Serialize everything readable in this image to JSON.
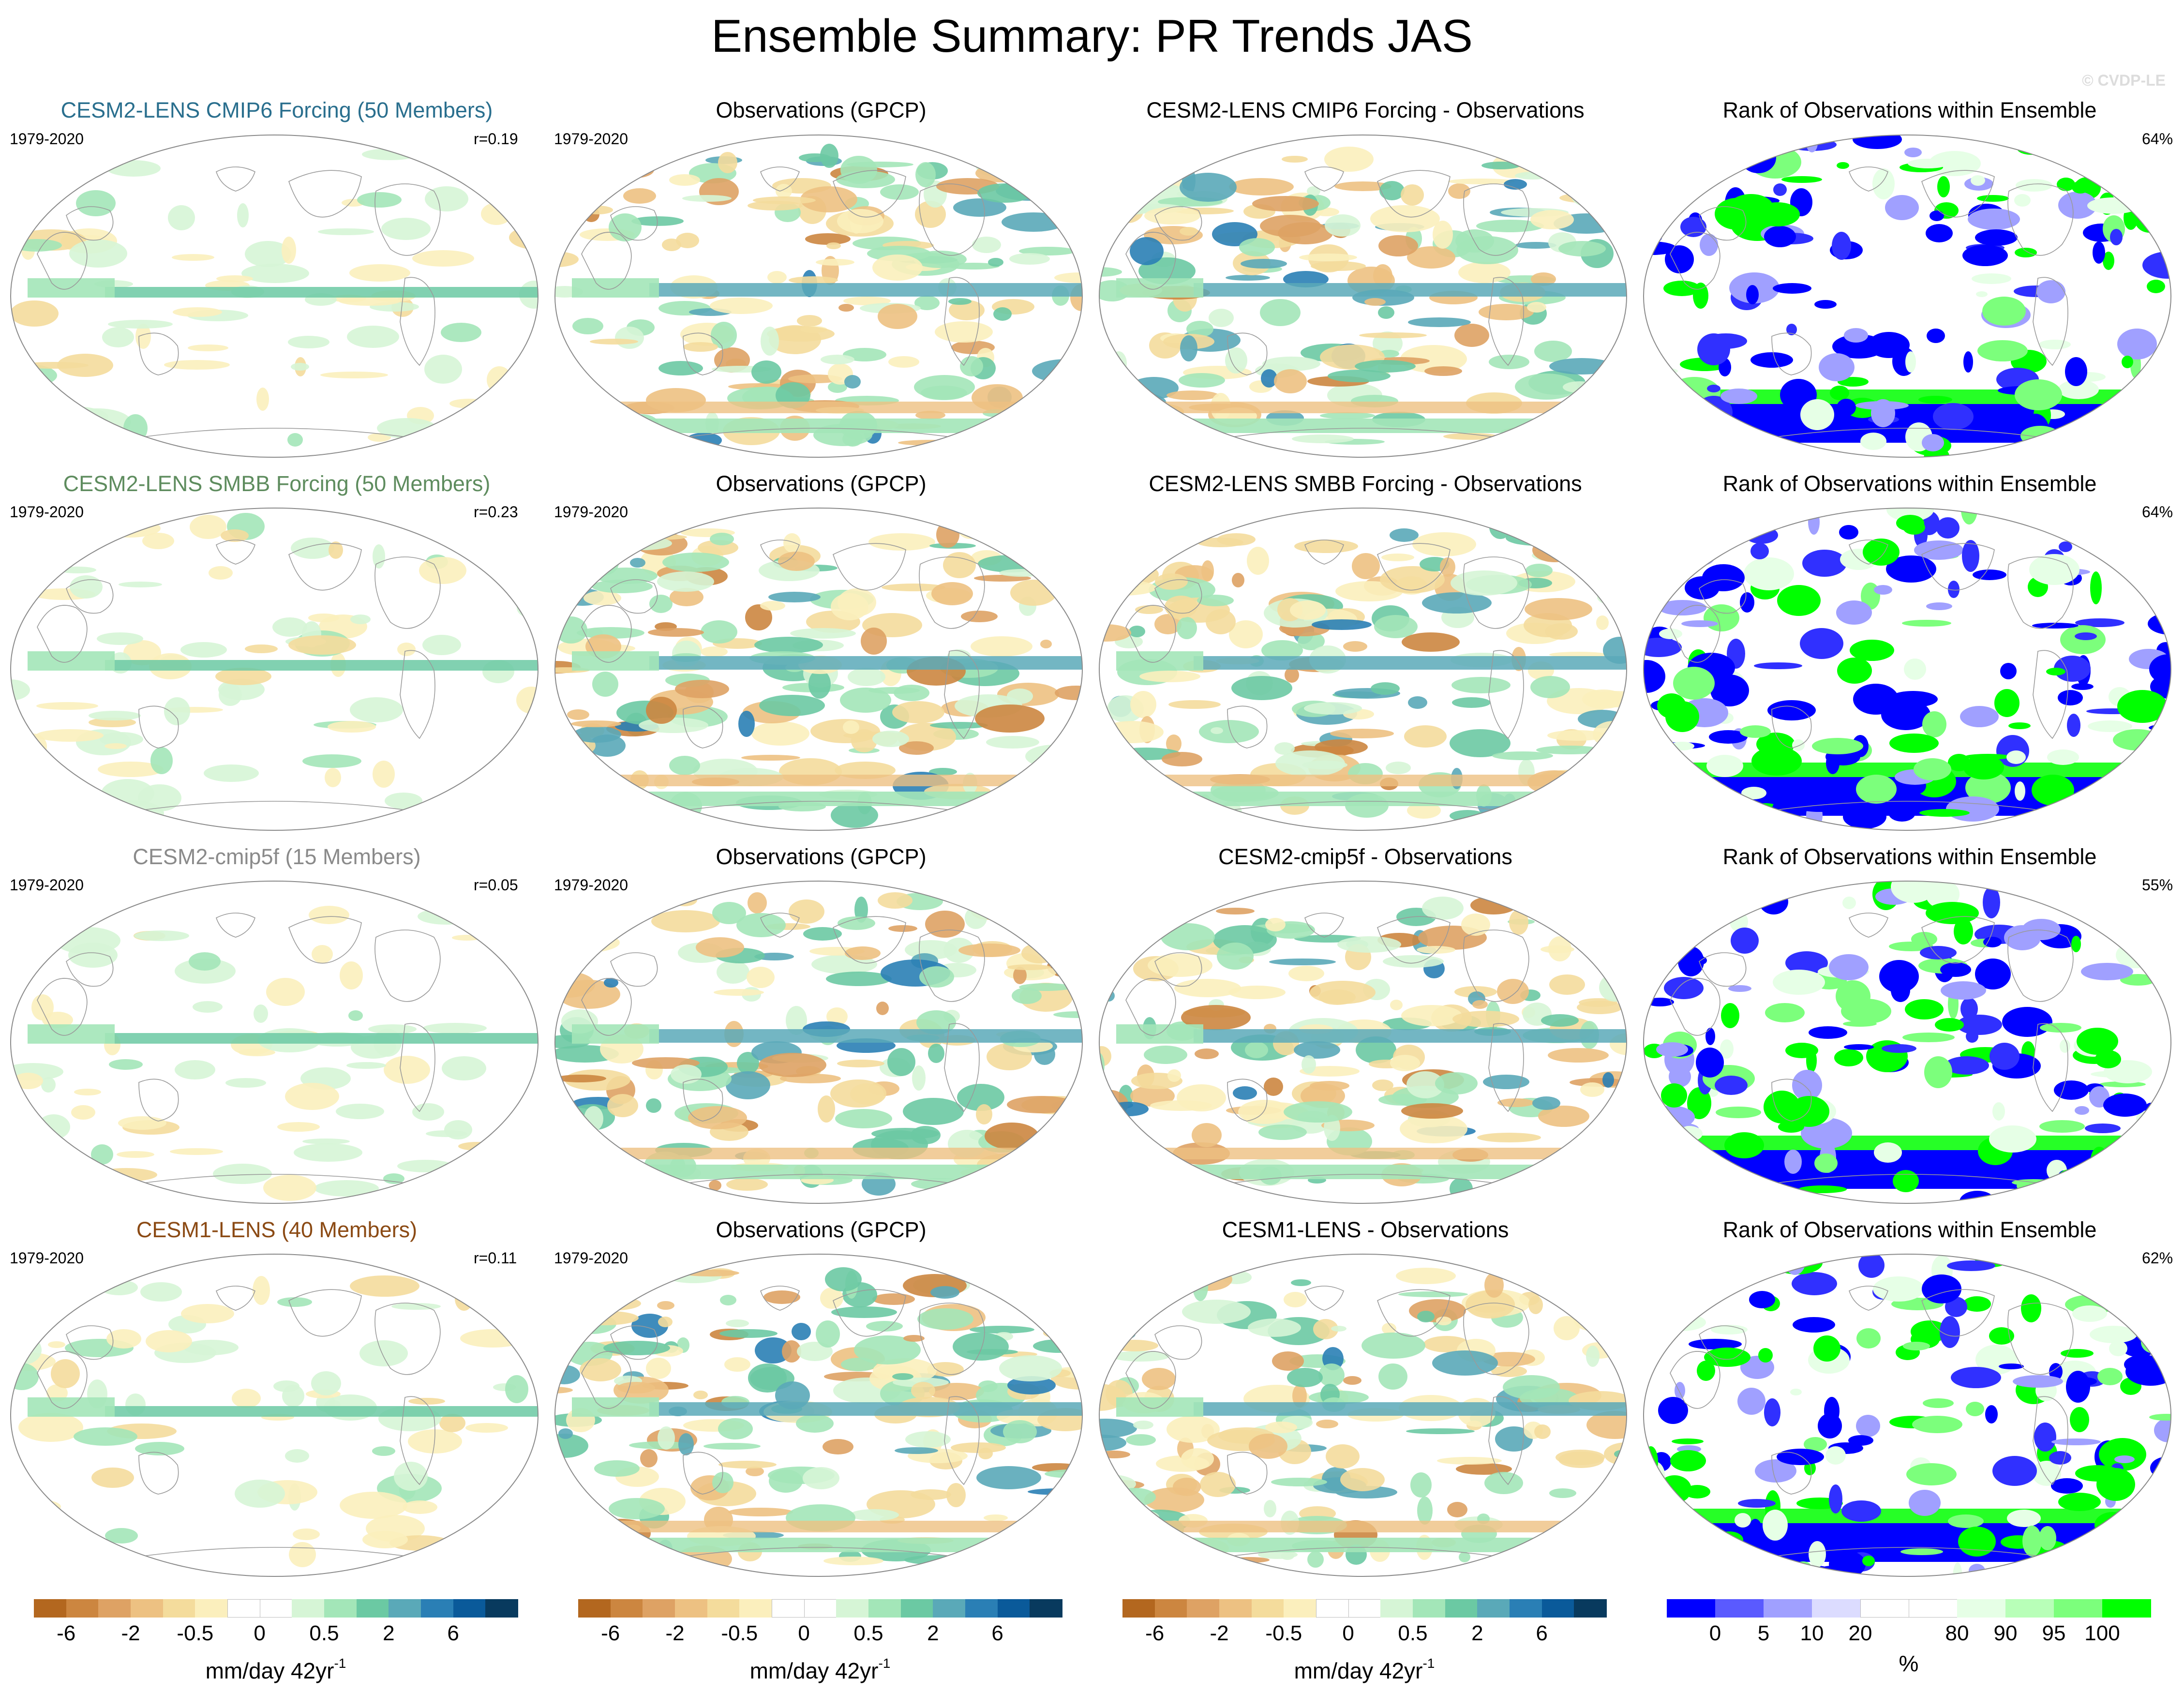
{
  "figure": {
    "title": "Ensemble Summary: PR Trends JAS",
    "watermark": "© CVDP-LE"
  },
  "rows": [
    {
      "model": {
        "title": "CESM2-LENS CMIP6 Forcing (50 Members)",
        "color": "#2a6f8e",
        "period": "1979-2020",
        "r": "r=0.19"
      },
      "obs": {
        "title": "Observations (GPCP)",
        "period": "1979-2020"
      },
      "diff": {
        "title": "CESM2-LENS CMIP6 Forcing - Observations"
      },
      "rank": {
        "title": "Rank of Observations within Ensemble",
        "pct": "64%"
      }
    },
    {
      "model": {
        "title": "CESM2-LENS SMBB Forcing (50 Members)",
        "color": "#5e8c5e",
        "period": "1979-2020",
        "r": "r=0.23"
      },
      "obs": {
        "title": "Observations (GPCP)",
        "period": "1979-2020"
      },
      "diff": {
        "title": "CESM2-LENS SMBB Forcing - Observations"
      },
      "rank": {
        "title": "Rank of Observations within Ensemble",
        "pct": "64%"
      }
    },
    {
      "model": {
        "title": "CESM2-cmip5f (15 Members)",
        "color": "#8a8a8a",
        "period": "1979-2020",
        "r": "r=0.05"
      },
      "obs": {
        "title": "Observations (GPCP)",
        "period": "1979-2020"
      },
      "diff": {
        "title": "CESM2-cmip5f - Observations"
      },
      "rank": {
        "title": "Rank of Observations within Ensemble",
        "pct": "55%"
      }
    },
    {
      "model": {
        "title": "CESM1-LENS (40 Members)",
        "color": "#8b4a14",
        "period": "1979-2020",
        "r": "r=0.11"
      },
      "obs": {
        "title": "Observations (GPCP)",
        "period": "1979-2020"
      },
      "diff": {
        "title": "CESM1-LENS - Observations"
      },
      "rank": {
        "title": "Rank of Observations within Ensemble",
        "pct": "62%"
      }
    }
  ],
  "trend_colorbar": {
    "colors": [
      "#b3671f",
      "#cc8640",
      "#dea264",
      "#edc182",
      "#f4dc9c",
      "#fbefbd",
      "#ffffff",
      "#ffffff",
      "#d6f5d6",
      "#a3e6b8",
      "#6bc9a3",
      "#5aa9b8",
      "#2a7fb5",
      "#0a5a9a",
      "#083a5e"
    ],
    "tick_labels": [
      "-6",
      "-2",
      "-0.5",
      "0",
      "0.5",
      "2",
      "6"
    ],
    "unit": "mm/day 42yr",
    "unit_exponent": "-1"
  },
  "rank_colorbar": {
    "colors": [
      "#0000ff",
      "#5a5aff",
      "#a0a0ff",
      "#dcdcff",
      "#ffffff",
      "#ffffff",
      "#e6ffe6",
      "#b8ffb8",
      "#7cff7c",
      "#00ff00"
    ],
    "tick_labels": [
      "0",
      "5",
      "10",
      "20",
      "80",
      "90",
      "95",
      "100"
    ],
    "unit": "%"
  }
}
